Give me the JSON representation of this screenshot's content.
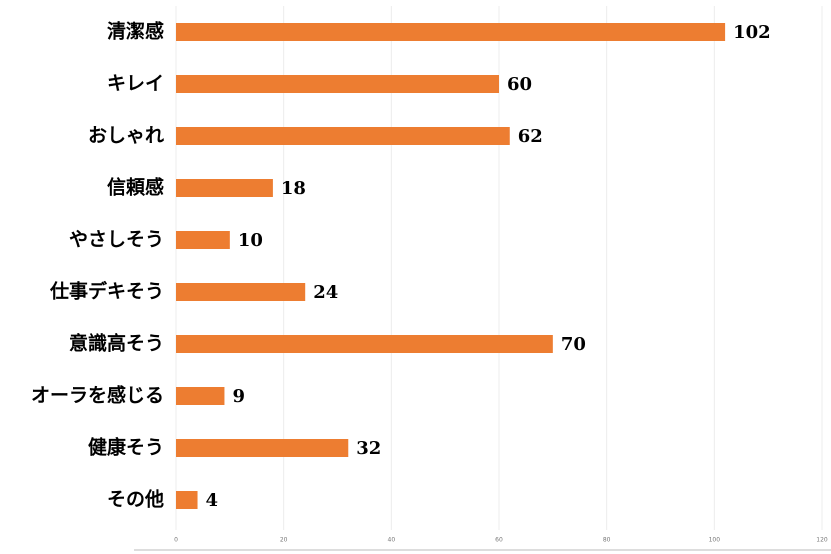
{
  "chart_data": {
    "type": "bar",
    "orientation": "horizontal",
    "categories": [
      "清潔感",
      "キレイ",
      "おしゃれ",
      "信頼感",
      "やさしそう",
      "仕事デキそう",
      "意識高そう",
      "オーラを感じる",
      "健康そう",
      "その他"
    ],
    "values": [
      102,
      60,
      62,
      18,
      10,
      24,
      70,
      9,
      32,
      4
    ],
    "color": "#ed7d31",
    "xlim": [
      0,
      120
    ],
    "xticks": [
      0,
      20,
      40,
      60,
      80,
      100,
      120
    ],
    "grid": true
  }
}
